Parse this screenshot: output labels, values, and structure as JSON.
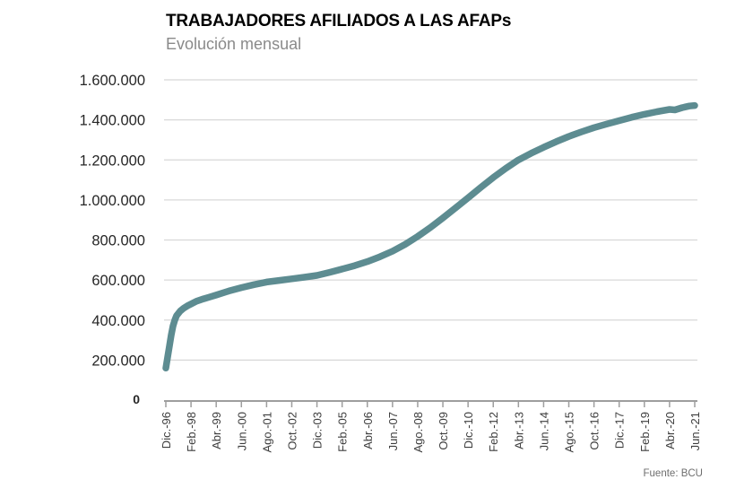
{
  "header": {
    "title": "TRABAJADORES AFILIADOS A LAS AFAPs",
    "subtitle": "Evolución mensual"
  },
  "colors": {
    "line": "#5d8c91",
    "grid": "#d8d8d8",
    "axis": "#9e9e9e",
    "title_text": "#000000",
    "subtitle_text": "#8a8a8a",
    "tick_text": "#262626",
    "x_tick_text": "#3d3d3d",
    "source_text": "#6e6e6e",
    "background": "#ffffff"
  },
  "chart_data": {
    "type": "line",
    "title": "TRABAJADORES AFILIADOS A LAS AFAPs",
    "subtitle": "Evolución mensual",
    "source": "Fuente: BCU",
    "legend_position": "none",
    "grid": "horizontal",
    "ylim": [
      0,
      1600000
    ],
    "months_total": 294,
    "y_ticks": [
      {
        "label": "1.600.000",
        "value": 1600000
      },
      {
        "label": "1.400.000",
        "value": 1400000
      },
      {
        "label": "1.200.000",
        "value": 1200000
      },
      {
        "label": "1.000.000",
        "value": 1000000
      },
      {
        "label": "800.000",
        "value": 800000
      },
      {
        "label": "600.000",
        "value": 600000
      },
      {
        "label": "400.000",
        "value": 400000
      },
      {
        "label": "200.000",
        "value": 200000
      },
      {
        "label": "0",
        "value": 0
      }
    ],
    "x_ticks": [
      {
        "label": "Dic.-96",
        "m": 0
      },
      {
        "label": "Feb.-98",
        "m": 14
      },
      {
        "label": "Abr.-99",
        "m": 28
      },
      {
        "label": "Jun.-00",
        "m": 42
      },
      {
        "label": "Ago.-01",
        "m": 56
      },
      {
        "label": "Oct.-02",
        "m": 70
      },
      {
        "label": "Dic.-03",
        "m": 84
      },
      {
        "label": "Feb.-05",
        "m": 98
      },
      {
        "label": "Abr.-06",
        "m": 112
      },
      {
        "label": "Jun.-07",
        "m": 126
      },
      {
        "label": "Ago.-08",
        "m": 140
      },
      {
        "label": "Oct.-09",
        "m": 154
      },
      {
        "label": "Dic.-10",
        "m": 168
      },
      {
        "label": "Feb.-12",
        "m": 182
      },
      {
        "label": "Abr.-13",
        "m": 196
      },
      {
        "label": "Jun.-14",
        "m": 210
      },
      {
        "label": "Ago.-15",
        "m": 224
      },
      {
        "label": "Oct.-16",
        "m": 238
      },
      {
        "label": "Dic.-17",
        "m": 252
      },
      {
        "label": "Feb.-19",
        "m": 266
      },
      {
        "label": "Abr.-20",
        "m": 280
      },
      {
        "label": "Jun.-21",
        "m": 294
      }
    ],
    "series": [
      {
        "name": "Trabajadores afiliados a las AFAPs",
        "color": "#5d8c91",
        "points": [
          [
            0,
            160000
          ],
          [
            1,
            215000
          ],
          [
            2,
            270000
          ],
          [
            3,
            325000
          ],
          [
            4,
            370000
          ],
          [
            5,
            400000
          ],
          [
            6,
            422000
          ],
          [
            8,
            445000
          ],
          [
            10,
            460000
          ],
          [
            12,
            471000
          ],
          [
            14,
            480000
          ],
          [
            17,
            494000
          ],
          [
            21,
            506000
          ],
          [
            24,
            514000
          ],
          [
            28,
            525000
          ],
          [
            35,
            545000
          ],
          [
            42,
            562000
          ],
          [
            49,
            577000
          ],
          [
            56,
            590000
          ],
          [
            63,
            598000
          ],
          [
            70,
            606000
          ],
          [
            77,
            614000
          ],
          [
            84,
            623000
          ],
          [
            91,
            638000
          ],
          [
            98,
            655000
          ],
          [
            105,
            672000
          ],
          [
            112,
            692000
          ],
          [
            119,
            716000
          ],
          [
            126,
            744000
          ],
          [
            133,
            778000
          ],
          [
            140,
            818000
          ],
          [
            147,
            862000
          ],
          [
            154,
            910000
          ],
          [
            161,
            960000
          ],
          [
            168,
            1010000
          ],
          [
            175,
            1062000
          ],
          [
            182,
            1112000
          ],
          [
            189,
            1158000
          ],
          [
            196,
            1200000
          ],
          [
            203,
            1233000
          ],
          [
            210,
            1263000
          ],
          [
            217,
            1291000
          ],
          [
            224,
            1317000
          ],
          [
            231,
            1340000
          ],
          [
            238,
            1361000
          ],
          [
            245,
            1379000
          ],
          [
            252,
            1396000
          ],
          [
            259,
            1413000
          ],
          [
            266,
            1428000
          ],
          [
            273,
            1441000
          ],
          [
            280,
            1452000
          ],
          [
            283,
            1450000
          ],
          [
            287,
            1461000
          ],
          [
            291,
            1469000
          ],
          [
            294,
            1472000
          ]
        ]
      }
    ]
  }
}
